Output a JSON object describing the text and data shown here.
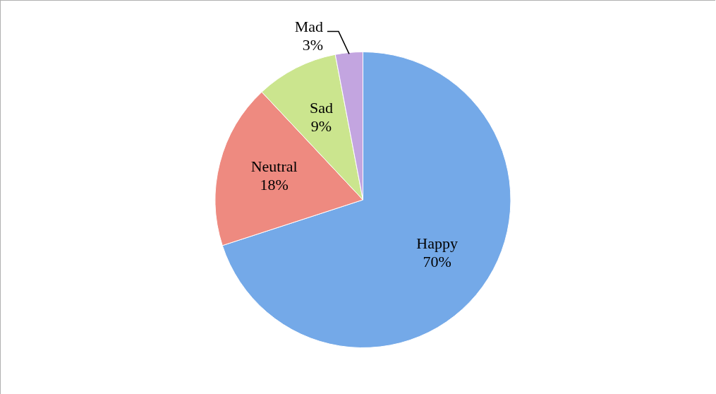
{
  "chart_data": {
    "type": "pie",
    "categories": [
      "Happy",
      "Neutral",
      "Sad",
      "Mad"
    ],
    "values": [
      70,
      18,
      9,
      3
    ],
    "colors": [
      "#74a9e8",
      "#ee8a80",
      "#cbe58e",
      "#c3a5e0"
    ],
    "value_labels": [
      "70%",
      "18%",
      "9%",
      "3%"
    ],
    "legend": false
  }
}
